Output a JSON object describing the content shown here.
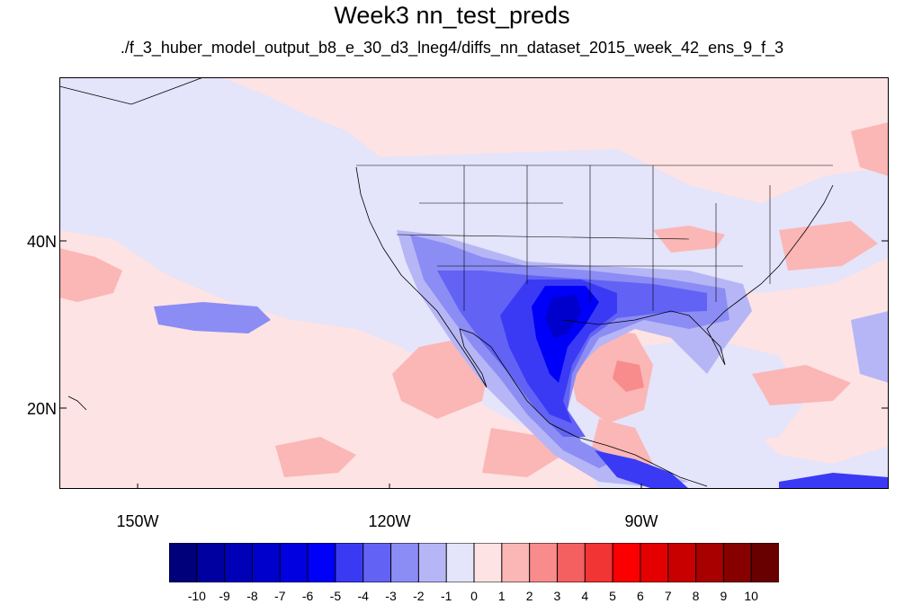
{
  "title": "Week3 nn_test_preds",
  "subtitle": "./f_3_huber_model_output_b8_e_30_d3_lneg4/diffs_nn_dataset_2015_week_42_ens_9_f_3",
  "map": {
    "lon_range": [
      -160,
      -61
    ],
    "lat_range": [
      11,
      60
    ],
    "lat_ticks": [
      {
        "value": 40,
        "label": "40N"
      },
      {
        "value": 20,
        "label": "20N"
      }
    ],
    "lon_ticks": [
      {
        "value": -150,
        "label": "150W"
      },
      {
        "value": -120,
        "label": "120W"
      },
      {
        "value": -90,
        "label": "90W"
      }
    ],
    "background_color": "#fde3e3",
    "notable_regions": [
      {
        "name": "southern-us-mexico-negative-core",
        "approx_value": -5
      },
      {
        "name": "gulf-of-mexico-positive",
        "approx_value": 3
      },
      {
        "name": "pacific-negative-patch",
        "approx_value": -2
      },
      {
        "name": "caribbean-positive",
        "approx_value": 2
      }
    ]
  },
  "colorbar": {
    "levels": [
      "-10",
      "-9",
      "-8",
      "-7",
      "-6",
      "-5",
      "-4",
      "-3",
      "-2",
      "-1",
      "0",
      "1",
      "2",
      "3",
      "4",
      "5",
      "6",
      "7",
      "8",
      "9",
      "10"
    ],
    "colors": [
      "#00007a",
      "#0000a0",
      "#0000b8",
      "#0000cc",
      "#0000e0",
      "#0000f8",
      "#3a3af5",
      "#6262f5",
      "#8c8cf5",
      "#b6b6f6",
      "#e4e4fa",
      "#fde3e3",
      "#fbb6b6",
      "#f88b8b",
      "#f45f5f",
      "#f13434",
      "#fb0000",
      "#e40000",
      "#c80000",
      "#a80000",
      "#860000",
      "#680000"
    ]
  }
}
